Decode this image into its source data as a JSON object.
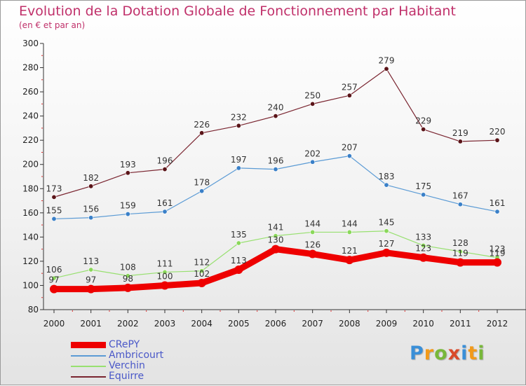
{
  "title": "Evolution de la Dotation Globale de Fonctionnement par Habitant",
  "subtitle": "(en € et par an)",
  "logo": {
    "text": "Proxiti",
    "colors": [
      "#3a8fd8",
      "#f29a1a",
      "#78b83a",
      "#d94a2a",
      "#3a8fd8",
      "#f29a1a",
      "#78b83a"
    ]
  },
  "chart_data": {
    "type": "line",
    "title": "Evolution de la Dotation Globale de Fonctionnement par Habitant",
    "subtitle": "(en € et par an)",
    "xlabel": "",
    "ylabel": "",
    "x": [
      "2000",
      "2001",
      "2002",
      "2003",
      "2004",
      "2005",
      "2006",
      "2007",
      "2008",
      "2009",
      "2010",
      "2011",
      "2012"
    ],
    "ylim": [
      80,
      300
    ],
    "yticks": [
      80,
      100,
      120,
      140,
      160,
      180,
      200,
      220,
      240,
      260,
      280,
      300
    ],
    "grid": false,
    "legend_position": "bottom-left",
    "series": [
      {
        "name": "CRePY",
        "color": "#ee0000",
        "values": [
          97,
          97,
          98,
          100,
          102,
          113,
          130,
          126,
          121,
          127,
          123,
          119,
          119
        ]
      },
      {
        "name": "Ambricourt",
        "color": "#5b9bd5",
        "values": [
          155,
          156,
          159,
          161,
          178,
          197,
          196,
          202,
          207,
          183,
          175,
          167,
          161
        ]
      },
      {
        "name": "Verchin",
        "color": "#98e070",
        "values": [
          106,
          113,
          108,
          111,
          112,
          135,
          141,
          144,
          144,
          145,
          133,
          128,
          123
        ]
      },
      {
        "name": "Equirre",
        "color": "#7a2530",
        "values": [
          173,
          182,
          193,
          196,
          226,
          232,
          240,
          250,
          257,
          279,
          229,
          219,
          220
        ]
      }
    ]
  }
}
